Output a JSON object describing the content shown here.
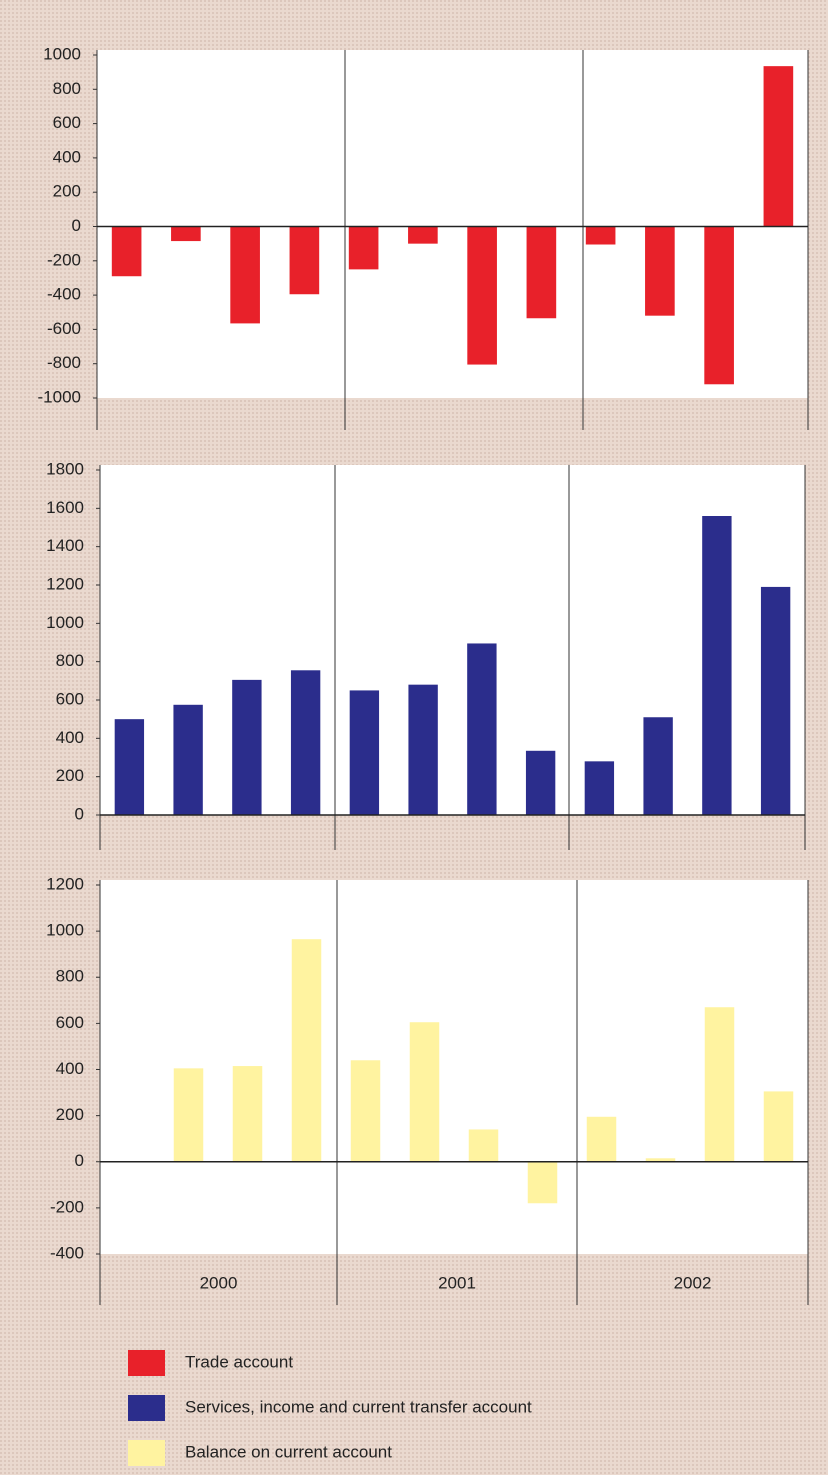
{
  "chart_data": [
    {
      "type": "bar",
      "categories": [
        null,
        null,
        null,
        null,
        null,
        null,
        null,
        null,
        null,
        null,
        null,
        null
      ],
      "series": [
        {
          "name": "Trade account",
          "color": "#e8212a",
          "values": [
            -290,
            -85,
            -565,
            -395,
            -250,
            -100,
            -805,
            -535,
            -105,
            -520,
            -920,
            935
          ]
        }
      ],
      "ylim": [
        -1000,
        1000
      ],
      "yticks": [
        -1000,
        -800,
        -600,
        -400,
        -200,
        0,
        200,
        400,
        600,
        800,
        1000
      ]
    },
    {
      "type": "bar",
      "categories": [
        null,
        null,
        null,
        null,
        null,
        null,
        null,
        null,
        null,
        null,
        null,
        null
      ],
      "series": [
        {
          "name": "Services, income and current transfer account",
          "color": "#2b2d8c",
          "values": [
            500,
            575,
            705,
            755,
            650,
            680,
            895,
            335,
            280,
            510,
            1560,
            1190
          ]
        }
      ],
      "ylim": [
        0,
        1800
      ],
      "yticks": [
        0,
        200,
        400,
        600,
        800,
        1000,
        1200,
        1400,
        1600,
        1800
      ]
    },
    {
      "type": "bar",
      "categories": [
        null,
        null,
        null,
        null,
        null,
        null,
        null,
        null,
        null,
        null,
        null,
        null
      ],
      "groups": [
        "2000",
        "2001",
        "2002"
      ],
      "series": [
        {
          "name": "Balance on current account",
          "color": "#fff3a0",
          "values": [
            0,
            405,
            415,
            965,
            440,
            605,
            140,
            -180,
            195,
            15,
            670,
            305
          ]
        }
      ],
      "ylim": [
        -400,
        1200
      ],
      "yticks": [
        -400,
        -200,
        0,
        200,
        400,
        600,
        800,
        1000,
        1200
      ]
    }
  ]
}
